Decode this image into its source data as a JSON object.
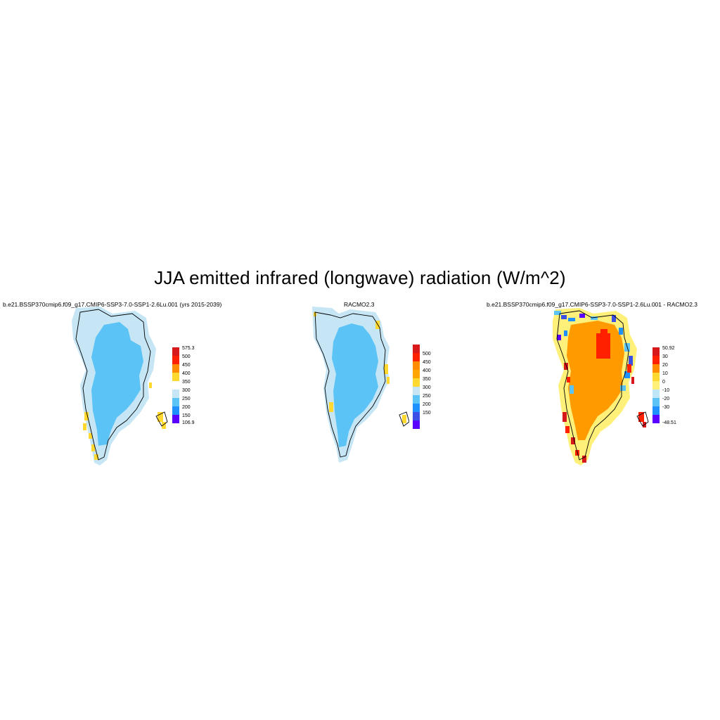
{
  "title": "JJA emitted infrared (longwave) radiation (W/m^2)",
  "panels": [
    {
      "id": "model",
      "title": "b.e21.BSSP370cmip6.f09_g17.CMIP6-SSP3-7.0-SSP1-2.6Lu.001 (yrs 2015-2039)",
      "colorbar": {
        "labels": [
          "575.3",
          "500",
          "450",
          "400",
          "350",
          "300",
          "250",
          "200",
          "150",
          "106.9"
        ],
        "colors": [
          "#d7191c",
          "#ff2000",
          "#ff8c00",
          "#ffa500",
          "#ffd92f",
          "#c6e6f6",
          "#5bc3f5",
          "#1e90ff",
          "#3c50e6",
          "#5a00ff"
        ]
      }
    },
    {
      "id": "obs",
      "title": "RACMO2.3",
      "colorbar": {
        "labels": [
          "500",
          "450",
          "400",
          "350",
          "300",
          "250",
          "200",
          "150"
        ],
        "colors": [
          "#d7191c",
          "#ff2000",
          "#ff8c00",
          "#ffa500",
          "#ffd92f",
          "#c6e6f6",
          "#5bc3f5",
          "#1e90ff",
          "#3c50e6",
          "#5a00ff"
        ]
      }
    },
    {
      "id": "diff",
      "title": "b.e21.BSSP370cmip6.f09_g17.CMIP6-SSP3-7.0-SSP1-2.6Lu.001 - RACMO2.3",
      "colorbar": {
        "labels": [
          "50.92",
          "30",
          "20",
          "10",
          "0",
          "-10",
          "-20",
          "-30",
          "-48.51"
        ],
        "colors": [
          "#d7191c",
          "#ff2000",
          "#ff8c00",
          "#ffd92f",
          "#fff07a",
          "#bfe6f7",
          "#5bc3f5",
          "#1e90ff",
          "#3c50e6",
          "#5a00ff"
        ]
      }
    }
  ],
  "map_colors": {
    "ice_interior": "#5bc3f5",
    "ice_margin": "#c6e6f6",
    "coast_warm": "#ffd92f",
    "diff_positive": "#ff9a00",
    "diff_strong": "#ff2000",
    "diff_margin": "#fff07a"
  }
}
